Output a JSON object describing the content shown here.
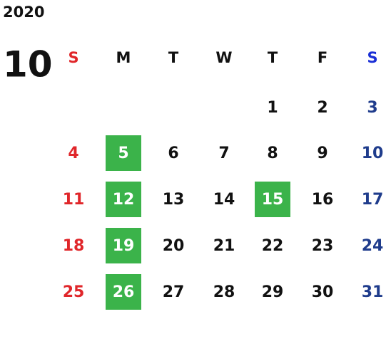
{
  "calendar": {
    "year": "2020",
    "month": "10",
    "weekdays": [
      "S",
      "M",
      "T",
      "W",
      "T",
      "F",
      "S"
    ],
    "weeks": [
      [
        null,
        null,
        null,
        null,
        1,
        2,
        3
      ],
      [
        4,
        5,
        6,
        7,
        8,
        9,
        10
      ],
      [
        11,
        12,
        13,
        14,
        15,
        16,
        17
      ],
      [
        18,
        19,
        20,
        21,
        22,
        23,
        24
      ],
      [
        25,
        26,
        27,
        28,
        29,
        30,
        31
      ]
    ],
    "highlighted": [
      5,
      12,
      15,
      19,
      26
    ],
    "highlight_color": "#3bb34a",
    "sunday_color": "#e0262a",
    "saturday_header_color": "#1a2fd6",
    "saturday_color": "#1f3c8c",
    "weekday_color": "#111111"
  }
}
